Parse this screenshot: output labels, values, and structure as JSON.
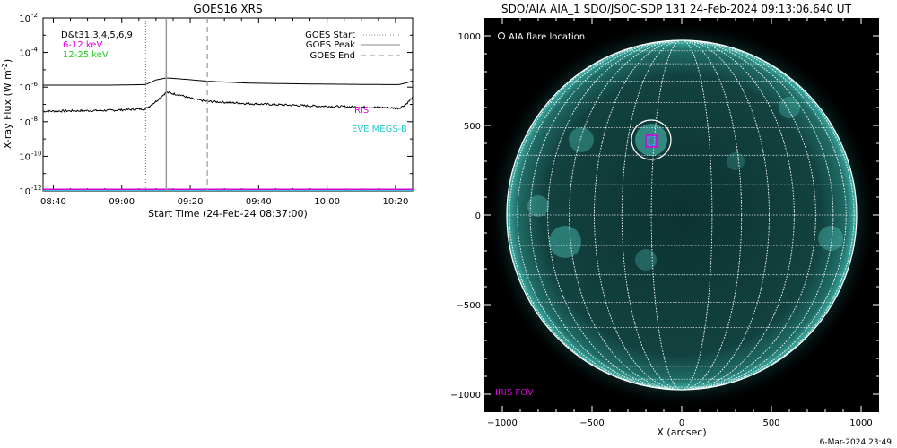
{
  "footer_timestamp": "6-Mar-2024 23:49",
  "chart_data": [
    {
      "type": "line",
      "title": "GOES16 XRS",
      "xlabel": "Start Time (24-Feb-24 08:37:00)",
      "ylabel": "X-ray Flux (W m",
      "ylabel_exp": "-2",
      "ylabel_close": ")",
      "y_scale": "log",
      "ylim": [
        1e-12,
        0.01
      ],
      "x_range_minutes": [
        0,
        108
      ],
      "x_ticks": [
        {
          "t": 3,
          "label": "08:40"
        },
        {
          "t": 23,
          "label": "09:00"
        },
        {
          "t": 43,
          "label": "09:20"
        },
        {
          "t": 63,
          "label": "09:40"
        },
        {
          "t": 83,
          "label": "10:00"
        },
        {
          "t": 103,
          "label": "10:20"
        }
      ],
      "y_ticks": [
        {
          "exp": -12,
          "label": "10",
          "sup": "-12"
        },
        {
          "exp": -10,
          "label": "10",
          "sup": "-10"
        },
        {
          "exp": -8,
          "label": "10",
          "sup": "-8"
        },
        {
          "exp": -6,
          "label": "10",
          "sup": "-6"
        },
        {
          "exp": -4,
          "label": "10",
          "sup": "-4"
        },
        {
          "exp": -2,
          "label": "10",
          "sup": "-2"
        }
      ],
      "events": {
        "start": 30,
        "peak": 36,
        "end": 48
      },
      "event_legend": [
        {
          "label": "GOES Start",
          "style": "dotted"
        },
        {
          "label": "GOES Peak",
          "style": "solid"
        },
        {
          "label": "GOES End",
          "style": "dashed"
        }
      ],
      "channel_legend": [
        {
          "label": "D&t31,3,4,5,6,9",
          "color": "#000000"
        },
        {
          "label": "6-12 keV",
          "color": "#dd00dd"
        },
        {
          "label": "12-25 keV",
          "color": "#22cc22"
        }
      ],
      "series": [
        {
          "color": "#000000",
          "t": [
            0,
            20,
            30,
            33,
            36,
            40,
            48,
            60,
            80,
            100,
            104,
            106,
            108
          ],
          "flux": [
            1.3e-06,
            1.3e-06,
            1.4e-06,
            2.6e-06,
            3.4e-06,
            3e-06,
            2.2e-06,
            1.7e-06,
            1.5e-06,
            1.4e-06,
            1.4e-06,
            1.7e-06,
            2.3e-06
          ]
        },
        {
          "color": "#000000",
          "t": [
            0,
            20,
            30,
            33,
            36,
            40,
            44,
            48,
            60,
            80,
            100,
            104,
            106,
            108
          ],
          "flux": [
            4e-08,
            4.5e-08,
            5.5e-08,
            1.5e-07,
            5e-07,
            3.5e-07,
            2e-07,
            1.5e-07,
            1.1e-07,
            8e-08,
            6.5e-08,
            6e-08,
            1e-07,
            2.5e-07
          ]
        },
        {
          "color": "#dd00dd",
          "t": [
            0,
            108
          ],
          "flux": [
            1.2e-12,
            1.2e-12
          ]
        },
        {
          "color": "#22cccc",
          "t": [
            0,
            108
          ],
          "flux": [
            1e-12,
            1e-12
          ]
        }
      ],
      "annotations": [
        {
          "text": "IRIS",
          "color": "#dd00dd"
        },
        {
          "text": "EVE MEGS-B",
          "color": "#22cccc"
        }
      ]
    },
    {
      "type": "image",
      "title": "SDO/AIA AIA_1 SDO/JSOC-SDP 131 24-Feb-2024 09:13:06.640 UT",
      "xlabel": "X (arcsec)",
      "xlim": [
        -1100,
        1100
      ],
      "ylim": [
        -1100,
        1100
      ],
      "x_ticks": [
        -1000,
        -500,
        0,
        500,
        1000
      ],
      "y_ticks": [
        -1000,
        -500,
        0,
        500,
        1000
      ],
      "solar_radius_arcsec": 975,
      "grid_spacing_deg": 10,
      "flare_location_arcsec": [
        -170,
        420
      ],
      "iris_fov_center_arcsec": [
        -170,
        410
      ],
      "legend_top": "AIA flare location",
      "legend_bottom": "IRIS FOV",
      "colors": {
        "disk": "#0f3f3d",
        "limb": "#4fe0d3",
        "iris": "#dd00dd",
        "grid": "#ffffff"
      }
    }
  ]
}
